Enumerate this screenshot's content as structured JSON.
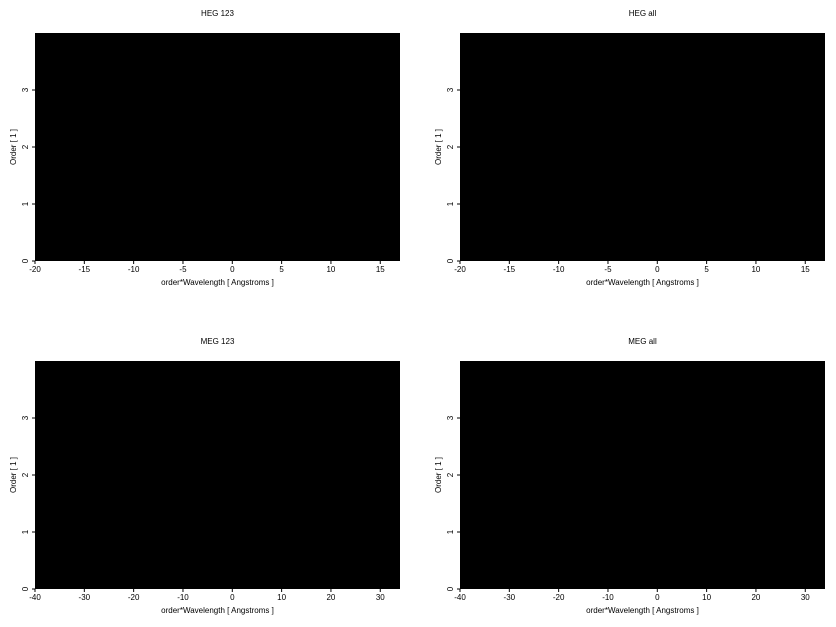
{
  "chart_data": [
    {
      "type": "heatmap",
      "title": "HEG 123",
      "xlabel": "order*Wavelength [ Angstroms ]",
      "ylabel": "Order [ 1 ]",
      "xlim": [
        -20,
        17
      ],
      "xticks": [
        -20,
        -15,
        -10,
        -5,
        0,
        5,
        10,
        15
      ],
      "ylim": [
        0,
        4
      ],
      "yticks": [
        0,
        1,
        2,
        3
      ]
    },
    {
      "type": "heatmap",
      "title": "HEG all",
      "xlabel": "order*Wavelength [ Angstroms ]",
      "ylabel": "Order [ 1 ]",
      "xlim": [
        -20,
        17
      ],
      "xticks": [
        -20,
        -15,
        -10,
        -5,
        0,
        5,
        10,
        15
      ],
      "ylim": [
        0,
        4
      ],
      "yticks": [
        0,
        1,
        2,
        3
      ]
    },
    {
      "type": "heatmap",
      "title": "MEG 123",
      "xlabel": "order*Wavelength [ Angstroms ]",
      "ylabel": "Order [ 1 ]",
      "xlim": [
        -40,
        34
      ],
      "xticks": [
        -40,
        -30,
        -20,
        -10,
        0,
        10,
        20,
        30
      ],
      "ylim": [
        0,
        4
      ],
      "yticks": [
        0,
        1,
        2,
        3
      ]
    },
    {
      "type": "heatmap",
      "title": "MEG all",
      "xlabel": "order*Wavelength [ Angstroms ]",
      "ylabel": "Order [ 1 ]",
      "xlim": [
        -40,
        34
      ],
      "xticks": [
        -40,
        -30,
        -20,
        -10,
        0,
        10,
        20,
        30
      ],
      "ylim": [
        0,
        4
      ],
      "yticks": [
        0,
        1,
        2,
        3
      ]
    }
  ]
}
